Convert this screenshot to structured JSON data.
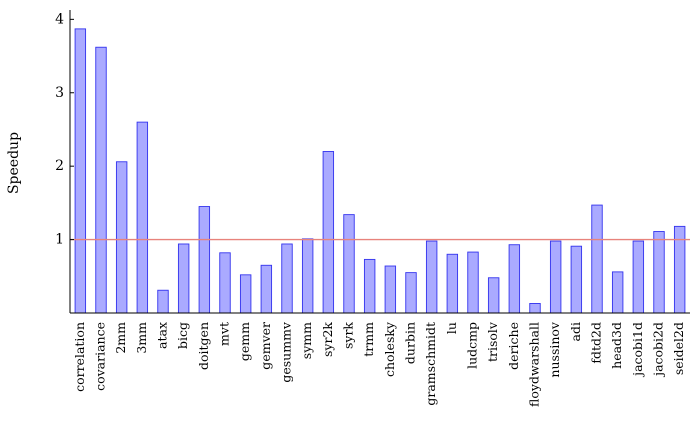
{
  "chart_data": {
    "type": "bar",
    "title": "",
    "xlabel": "",
    "ylabel": "Speedup",
    "ylim": [
      0,
      4.1
    ],
    "yticks": [
      1,
      2,
      3,
      4
    ],
    "grid": false,
    "legend": "none",
    "bar_fill": "#aaaaff",
    "bar_stroke": "#3333ee",
    "reference_line": {
      "value": 1,
      "color": "#e8837c"
    },
    "categories": [
      "correlation",
      "covariance",
      "2mm",
      "3mm",
      "atax",
      "bicg",
      "doitgen",
      "mvt",
      "gemm",
      "gemver",
      "gesummv",
      "symm",
      "syr2k",
      "syrk",
      "trmm",
      "cholesky",
      "durbin",
      "gramschmidt",
      "lu",
      "ludcmp",
      "trisolv",
      "deriche",
      "floydwarshall",
      "nussinov",
      "adi",
      "fdtd2d",
      "head3d",
      "jacobi1d",
      "jacobi2d",
      "seidel2d"
    ],
    "values": [
      3.87,
      3.62,
      2.06,
      2.6,
      0.31,
      0.94,
      1.45,
      0.82,
      0.52,
      0.65,
      0.94,
      1.01,
      2.2,
      1.34,
      0.73,
      0.64,
      0.55,
      0.98,
      0.8,
      0.83,
      0.48,
      0.93,
      0.13,
      0.98,
      0.91,
      1.47,
      0.56,
      0.98,
      1.11,
      1.18
    ]
  }
}
